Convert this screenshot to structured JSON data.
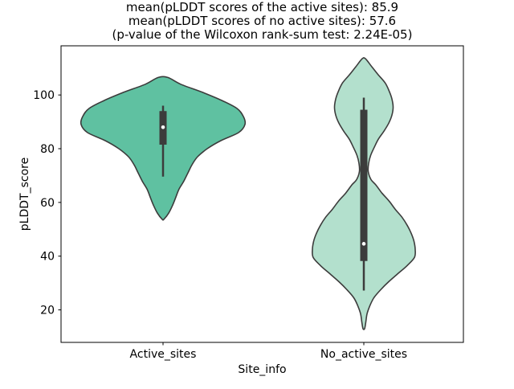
{
  "chart_data": {
    "type": "violin",
    "title_lines": [
      "mean(pLDDT scores of the active sites): 85.9",
      "mean(pLDDT scores of no active sites): 57.6",
      "(p-value of the Wilcoxon rank-sum test: 2.24E-05)"
    ],
    "xlabel": "Site_info",
    "ylabel": "pLDDT_score",
    "categories": [
      "Active_sites",
      "No_active_sites"
    ],
    "yticks": [
      20,
      40,
      60,
      80,
      100
    ],
    "ylim": [
      7.9,
      118.3
    ],
    "grid": false,
    "legend": null,
    "stats": {
      "mean_active_sites": 85.9,
      "mean_no_active_sites": 57.6,
      "wilcoxon_rank_sum_p_value": "2.24E-05"
    },
    "edge_color": "#3c3c3c",
    "box_color": "#3c3c3c",
    "median_dot_color": "#ffffff",
    "series": [
      {
        "name": "Active_sites",
        "fill_color": "#5fc1a1",
        "kde_range": [
          53.7,
          106.5
        ],
        "box": {
          "median": 88.0,
          "q1": 81.5,
          "q3": 94.0,
          "whisker_low": 69.6,
          "whisker_high": 96.0
        },
        "profile": [
          [
            106.5,
            0.06
          ],
          [
            104,
            0.22
          ],
          [
            101,
            0.49
          ],
          [
            98,
            0.73
          ],
          [
            95,
            0.92
          ],
          [
            92,
            1.0
          ],
          [
            89,
            1.02
          ],
          [
            86,
            0.94
          ],
          [
            83,
            0.72
          ],
          [
            80,
            0.55
          ],
          [
            77,
            0.43
          ],
          [
            74,
            0.36
          ],
          [
            71,
            0.31
          ],
          [
            68,
            0.26
          ],
          [
            65,
            0.2
          ],
          [
            62,
            0.16
          ],
          [
            59,
            0.12
          ],
          [
            56,
            0.07
          ],
          [
            53.7,
            0.01
          ]
        ]
      },
      {
        "name": "No_active_sites",
        "fill_color": "#b3e0cd",
        "kde_range": [
          13.0,
          113.5
        ],
        "box": {
          "median": 44.6,
          "q1": 38.2,
          "q3": 94.5,
          "whisker_low": 27.2,
          "whisker_high": 99.0
        },
        "profile": [
          [
            113.5,
            0.02
          ],
          [
            110.5,
            0.1
          ],
          [
            107.5,
            0.18
          ],
          [
            104.5,
            0.265
          ],
          [
            101.5,
            0.315
          ],
          [
            98.5,
            0.35
          ],
          [
            95.5,
            0.365
          ],
          [
            92.5,
            0.35
          ],
          [
            89.5,
            0.31
          ],
          [
            86.5,
            0.25
          ],
          [
            83.5,
            0.18
          ],
          [
            80.5,
            0.13
          ],
          [
            77.5,
            0.085
          ],
          [
            74.5,
            0.06
          ],
          [
            71.5,
            0.055
          ],
          [
            68.5,
            0.09
          ],
          [
            66.5,
            0.15
          ],
          [
            63.5,
            0.225
          ],
          [
            60.5,
            0.315
          ],
          [
            57.5,
            0.39
          ],
          [
            54.5,
            0.475
          ],
          [
            51.5,
            0.54
          ],
          [
            48.5,
            0.59
          ],
          [
            45.5,
            0.625
          ],
          [
            42.5,
            0.64
          ],
          [
            39.5,
            0.63
          ],
          [
            36.5,
            0.54
          ],
          [
            33.5,
            0.425
          ],
          [
            30.5,
            0.31
          ],
          [
            27.5,
            0.21
          ],
          [
            24.5,
            0.125
          ],
          [
            21.5,
            0.075
          ],
          [
            18.5,
            0.04
          ],
          [
            15.5,
            0.025
          ],
          [
            13,
            0.01
          ]
        ]
      }
    ]
  }
}
